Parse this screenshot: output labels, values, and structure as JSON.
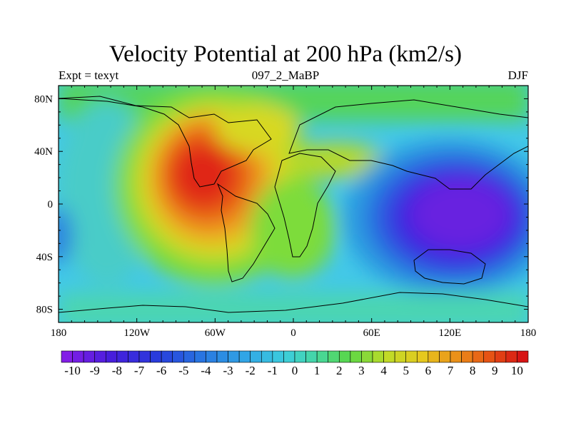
{
  "title": "Velocity Potential at 200 hPa (km2/s)",
  "subtitle_left": "Expt = texyt",
  "subtitle_center": "097_2_MaBP",
  "subtitle_right": "DJF",
  "chart_data": {
    "type": "heatmap",
    "projection": "cylindrical equidistant map",
    "title": "Velocity Potential at 200 hPa (km2/s)",
    "units": "km2/s",
    "x_ticks": [
      "180",
      "120W",
      "60W",
      "0",
      "60E",
      "120E",
      "180"
    ],
    "y_ticks": [
      "80N",
      "40N",
      "0",
      "40S",
      "80S"
    ],
    "xlim": [
      -180,
      180
    ],
    "ylim": [
      -90,
      90
    ],
    "colorbar": {
      "labels": [
        "-10",
        "-9",
        "-8",
        "-7",
        "-6",
        "-5",
        "-4",
        "-3",
        "-2",
        "-1",
        "0",
        "1",
        "2",
        "3",
        "4",
        "5",
        "6",
        "7",
        "8",
        "9",
        "10"
      ],
      "min": -10.5,
      "max": 10.5,
      "step": 0.5
    },
    "field_centers": [
      {
        "name": "upper-level divergence maximum",
        "lon": -60,
        "lat": 18,
        "value": 9.5
      },
      {
        "name": "upper-level convergence minimum",
        "lon": 135,
        "lat": -15,
        "value": -10
      }
    ]
  }
}
